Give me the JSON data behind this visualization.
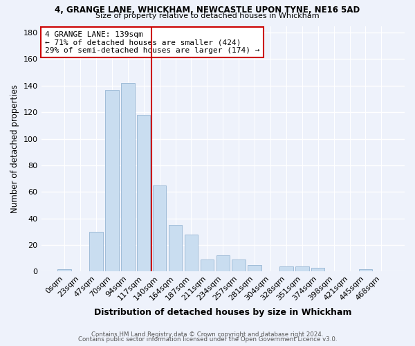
{
  "title1": "4, GRANGE LANE, WHICKHAM, NEWCASTLE UPON TYNE, NE16 5AD",
  "title2": "Size of property relative to detached houses in Whickham",
  "xlabel": "Distribution of detached houses by size in Whickham",
  "ylabel": "Number of detached properties",
  "bar_labels": [
    "0sqm",
    "23sqm",
    "47sqm",
    "70sqm",
    "94sqm",
    "117sqm",
    "140sqm",
    "164sqm",
    "187sqm",
    "211sqm",
    "234sqm",
    "257sqm",
    "281sqm",
    "304sqm",
    "328sqm",
    "351sqm",
    "374sqm",
    "398sqm",
    "421sqm",
    "445sqm",
    "468sqm"
  ],
  "bar_values": [
    2,
    0,
    30,
    137,
    142,
    118,
    65,
    35,
    28,
    9,
    12,
    9,
    5,
    0,
    4,
    4,
    3,
    0,
    0,
    2,
    0
  ],
  "bar_color": "#c9ddf0",
  "bar_edge_color": "#a0bcd8",
  "vline_x": 5.5,
  "vline_color": "#cc0000",
  "annotation_line1": "4 GRANGE LANE: 139sqm",
  "annotation_line2": "← 71% of detached houses are smaller (424)",
  "annotation_line3": "29% of semi-detached houses are larger (174) →",
  "annotation_box_color": "#ffffff",
  "annotation_box_edge": "#cc0000",
  "ylim": [
    0,
    185
  ],
  "yticks": [
    0,
    20,
    40,
    60,
    80,
    100,
    120,
    140,
    160,
    180
  ],
  "footer1": "Contains HM Land Registry data © Crown copyright and database right 2024.",
  "footer2": "Contains public sector information licensed under the Open Government Licence v3.0.",
  "bg_color": "#eef2fb",
  "grid_color": "#ffffff",
  "figsize": [
    6.0,
    5.0
  ],
  "dpi": 100
}
